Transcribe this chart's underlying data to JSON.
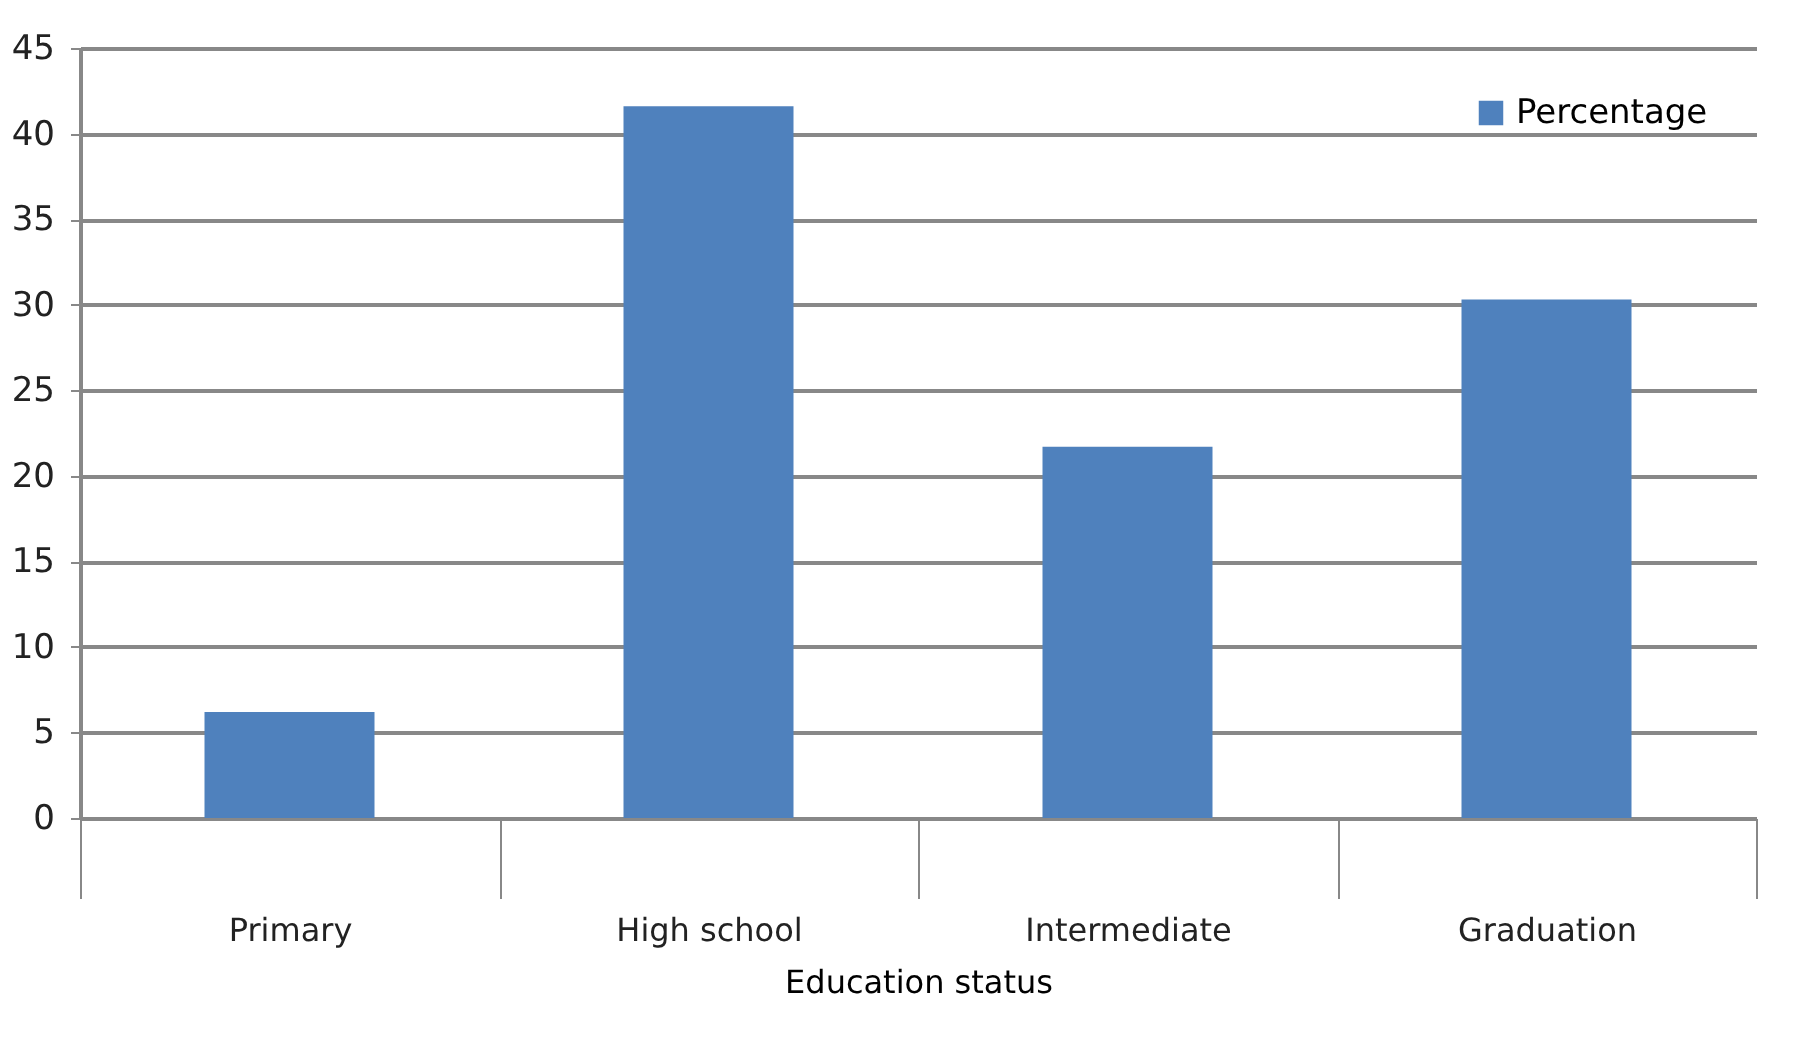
{
  "chart_data": {
    "type": "bar",
    "xlabel": "Education status",
    "categories": [
      "Primary",
      "High school",
      "Intermediate",
      "Graduation"
    ],
    "series": [
      {
        "name": "Percentage",
        "color": "#4f81bd",
        "values": [
          6.2,
          41.6,
          21.7,
          30.3
        ]
      }
    ],
    "ylim": [
      0,
      45
    ],
    "yticks": [
      0,
      5,
      10,
      15,
      20,
      25,
      30,
      35,
      40,
      45
    ],
    "grid": "y",
    "legend": "top right"
  }
}
